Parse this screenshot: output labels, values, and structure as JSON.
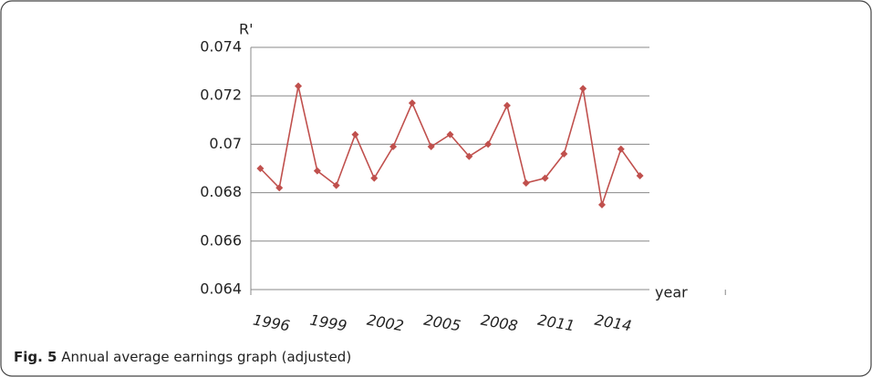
{
  "chart_data": {
    "type": "line",
    "y_label": "R'",
    "x_label": "year",
    "caption_label": "Fig. 5",
    "caption": "Annual average earnings graph (adjusted)",
    "categories": [
      "1996",
      null,
      null,
      "1999",
      null,
      null,
      "2002",
      null,
      null,
      "2005",
      null,
      null,
      "2008",
      null,
      null,
      "2011",
      null,
      null,
      "2014",
      null,
      null
    ],
    "series": [
      {
        "name": "R'",
        "color": "#c0504d",
        "values": [
          0.069,
          0.0682,
          0.0724,
          0.0689,
          0.0683,
          0.0704,
          0.0686,
          0.0699,
          0.0717,
          0.0699,
          0.0704,
          0.0695,
          0.07,
          0.0716,
          0.0684,
          0.0686,
          0.0696,
          0.0723,
          0.0675,
          0.0698,
          0.0687
        ]
      }
    ],
    "ylim": [
      0.064,
      0.074
    ],
    "yticks": [
      0.064,
      0.066,
      0.068,
      0.07,
      0.072,
      0.074
    ],
    "grid": true
  }
}
